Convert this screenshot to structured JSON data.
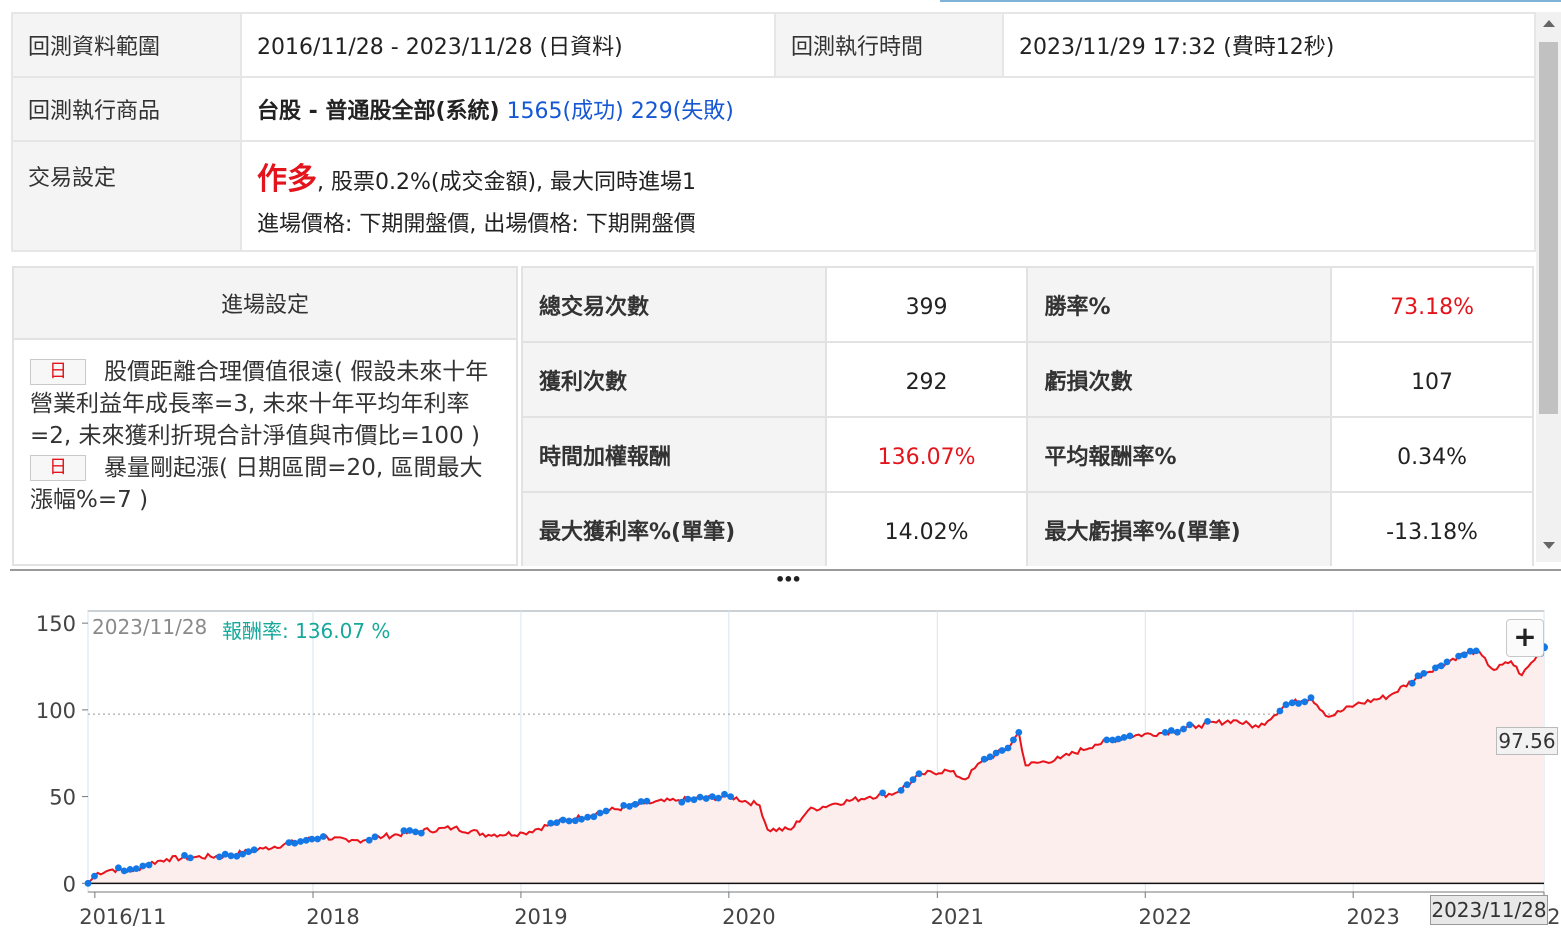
{
  "info": {
    "range_label": "回測資料範圍",
    "range_value": "2016/11/28 - 2023/11/28 (日資料)",
    "exec_time_label": "回測執行時間",
    "exec_time_value": "2023/11/29 17:32 (費時12秒)",
    "product_label": "回測執行商品",
    "product_prefix": "台股 - 普通股全部(系統)",
    "product_success": "1565(成功)",
    "product_fail": "229(失敗)",
    "trade_label": "交易設定",
    "trade_direction": "作多",
    "trade_line1_rest": ", 股票0.2%(成交金額), 最大同時進場1",
    "trade_line2": "進場價格: 下期開盤價, 出場價格: 下期開盤價"
  },
  "entry": {
    "header": "進場設定",
    "conditions": [
      {
        "tag": "日",
        "text": "股價距離合理價值很遠( 假設未來十年營業利益年成長率=3, 未來十年平均年利率=2, 未來獲利折現合計淨值與市價比=100 )"
      },
      {
        "tag": "日",
        "text": "暴量剛起漲( 日期區間=20, 區間最大漲幅%=7 )"
      }
    ]
  },
  "stats": [
    {
      "label": "總交易次數",
      "value": "399",
      "label2": "勝率%",
      "value2": "73.18%",
      "value_color": "#222222",
      "value2_color": "#e3141c"
    },
    {
      "label": "獲利次數",
      "value": "292",
      "label2": "虧損次數",
      "value2": "107",
      "value_color": "#222222",
      "value2_color": "#222222"
    },
    {
      "label": "時間加權報酬",
      "value": "136.07%",
      "label2": "平均報酬率%",
      "value2": "0.34%",
      "value_color": "#e3141c",
      "value2_color": "#222222"
    },
    {
      "label": "最大獲利率%(單筆)",
      "value": "14.02%",
      "label2": "最大虧損率%(單筆)",
      "value2": "-13.18%",
      "value_color": "#222222",
      "value2_color": "#222222"
    }
  ],
  "splitter": {
    "dots": "•••"
  },
  "chart_header": {
    "date": "2023/11/28",
    "return_label": "報酬率: 136.07 %",
    "zoom_button": "+",
    "last_value_tag": "97.56",
    "last_date_tag": "2023/11/28"
  },
  "chart_data": {
    "type": "line",
    "ylim": [
      -5,
      157
    ],
    "y_ticks": [
      0,
      50,
      100,
      150
    ],
    "x_tick_labels": [
      "2016/11",
      "2018",
      "2019",
      "2020",
      "2021",
      "2022",
      "2023",
      "2023/11"
    ],
    "reference_line": 97.56,
    "series": [
      {
        "color": "#e8141c",
        "points": [
          [
            "2016/11/28",
            0
          ],
          [
            "2016/12/15",
            6
          ],
          [
            "2017/01/10",
            8
          ],
          [
            "2017/02/15",
            7
          ],
          [
            "2017/03/10",
            11
          ],
          [
            "2017/04/15",
            14
          ],
          [
            "2017/06/01",
            15
          ],
          [
            "2017/08/01",
            16
          ],
          [
            "2017/10/01",
            20
          ],
          [
            "2017/12/01",
            24
          ],
          [
            "2018/01/15",
            27
          ],
          [
            "2018/03/01",
            24
          ],
          [
            "2018/05/01",
            27
          ],
          [
            "2018/07/01",
            30
          ],
          [
            "2018/09/01",
            32
          ],
          [
            "2018/11/01",
            28
          ],
          [
            "2019/01/01",
            29
          ],
          [
            "2019/03/01",
            35
          ],
          [
            "2019/06/01",
            42
          ],
          [
            "2019/08/01",
            46
          ],
          [
            "2019/10/01",
            48
          ],
          [
            "2019/12/31",
            50
          ],
          [
            "2020/02/20",
            45
          ],
          [
            "2020/03/05",
            31
          ],
          [
            "2020/04/15",
            31
          ],
          [
            "2020/05/15",
            42
          ],
          [
            "2020/07/01",
            46
          ],
          [
            "2020/09/01",
            50
          ],
          [
            "2020/10/15",
            52
          ],
          [
            "2020/12/01",
            63
          ],
          [
            "2021/01/15",
            65
          ],
          [
            "2021/02/15",
            60
          ],
          [
            "2021/03/15",
            70
          ],
          [
            "2021/05/01",
            78
          ],
          [
            "2021/05/20",
            87
          ],
          [
            "2021/06/01",
            68
          ],
          [
            "2021/08/01",
            72
          ],
          [
            "2021/10/01",
            80
          ],
          [
            "2021/12/01",
            85
          ],
          [
            "2022/02/01",
            87
          ],
          [
            "2022/04/01",
            91
          ],
          [
            "2022/06/01",
            94
          ],
          [
            "2022/07/15",
            90
          ],
          [
            "2022/09/01",
            103
          ],
          [
            "2022/10/15",
            107
          ],
          [
            "2022/11/15",
            96
          ],
          [
            "2023/01/01",
            103
          ],
          [
            "2023/03/01",
            108
          ],
          [
            "2023/05/01",
            121
          ],
          [
            "2023/07/01",
            131
          ],
          [
            "2023/08/01",
            134
          ],
          [
            "2023/09/01",
            123
          ],
          [
            "2023/10/01",
            128
          ],
          [
            "2023/10/20",
            120
          ],
          [
            "2023/11/28",
            136.07
          ]
        ]
      }
    ],
    "entry_markers_color": "#1477e6"
  },
  "colors": {
    "grid": "#d6e6f2",
    "area_fill": "#fbeeed",
    "zero_line": "#111111"
  }
}
